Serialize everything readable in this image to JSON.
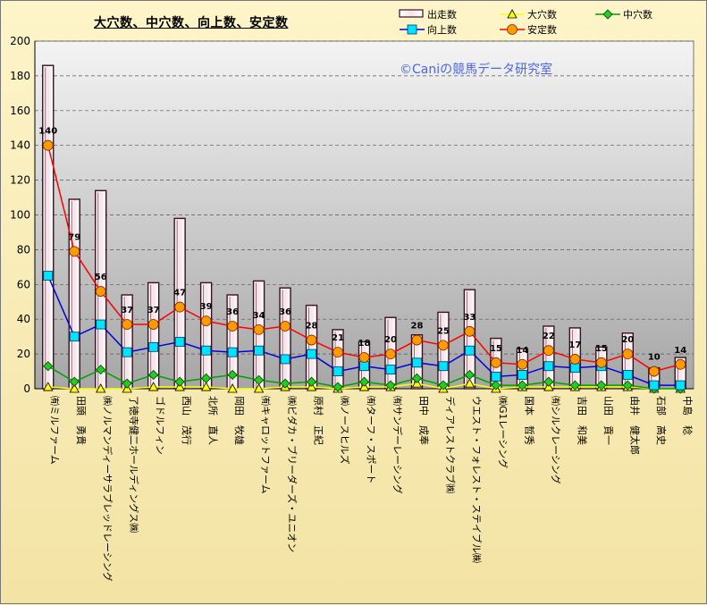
{
  "chart_data": {
    "type": "bar",
    "title": "大穴数、中穴数、向上数、安定数",
    "watermark": "©Caniの競馬データ研究室",
    "ylim": [
      0,
      200
    ],
    "yticks": [
      0,
      20,
      40,
      60,
      80,
      100,
      120,
      140,
      160,
      180,
      200
    ],
    "categories": [
      "㈲ミルファーム",
      "田頭　勇貴",
      "㈱ノルマンディーサラブレッドレーシング",
      "了徳寺健二ホールディングス㈱",
      "ゴドルフィン",
      "西山　茂行",
      "北所　直人",
      "岡田　牧雄",
      "㈲キャロットファーム",
      "㈱ビダカ・ブリーダーズ・ユニオン",
      "原村　正紀",
      "㈱ノースヒルズ",
      "㈲ターフ・スポート",
      "㈲サンデーレーシング",
      "田中　成奉",
      "ディアレストクラブ㈱",
      "ウエスト・フォレスト・ステイブル㈱",
      "㈱G1レーシング",
      "国本　哲秀",
      "㈲シルクレーシング",
      "吉田　和美",
      "山田　貢一",
      "由井　健太郎",
      "石部　高史",
      "中島　稔"
    ],
    "series": [
      {
        "name": "出走数",
        "kind": "bar",
        "color": "#f5e9ee",
        "values": [
          186,
          109,
          114,
          54,
          61,
          98,
          61,
          54,
          62,
          58,
          48,
          34,
          27,
          41,
          31,
          44,
          57,
          29,
          23,
          36,
          35,
          24,
          32,
          12,
          18
        ]
      },
      {
        "name": "大穴数",
        "kind": "line",
        "color": "#ffff00",
        "marker": "triangle",
        "values": [
          1,
          0,
          0,
          0,
          1,
          1,
          1,
          0,
          0,
          1,
          1,
          0,
          1,
          1,
          3,
          0,
          3,
          0,
          1,
          1,
          1,
          1,
          1,
          0,
          0
        ]
      },
      {
        "name": "中穴数",
        "kind": "line",
        "color": "#00a000",
        "marker": "diamond",
        "values": [
          13,
          4,
          11,
          3,
          8,
          4,
          6,
          8,
          5,
          3,
          4,
          1,
          4,
          2,
          6,
          2,
          8,
          2,
          2,
          4,
          2,
          2,
          2,
          0,
          0
        ]
      },
      {
        "name": "向上数",
        "kind": "line",
        "color": "#0000dd",
        "marker": "square",
        "values": [
          65,
          30,
          37,
          21,
          24,
          27,
          22,
          21,
          22,
          17,
          20,
          10,
          13,
          11,
          15,
          13,
          22,
          7,
          8,
          13,
          12,
          13,
          8,
          2,
          2
        ]
      },
      {
        "name": "安定数",
        "kind": "line",
        "color": "#ff0000",
        "marker": "circle",
        "values": [
          140,
          79,
          56,
          37,
          37,
          47,
          39,
          36,
          34,
          36,
          28,
          21,
          18,
          20,
          28,
          25,
          33,
          15,
          14,
          22,
          17,
          15,
          20,
          10,
          14
        ]
      }
    ],
    "data_labels_series": "安定数",
    "grid": true,
    "legend_position": "top-right"
  }
}
